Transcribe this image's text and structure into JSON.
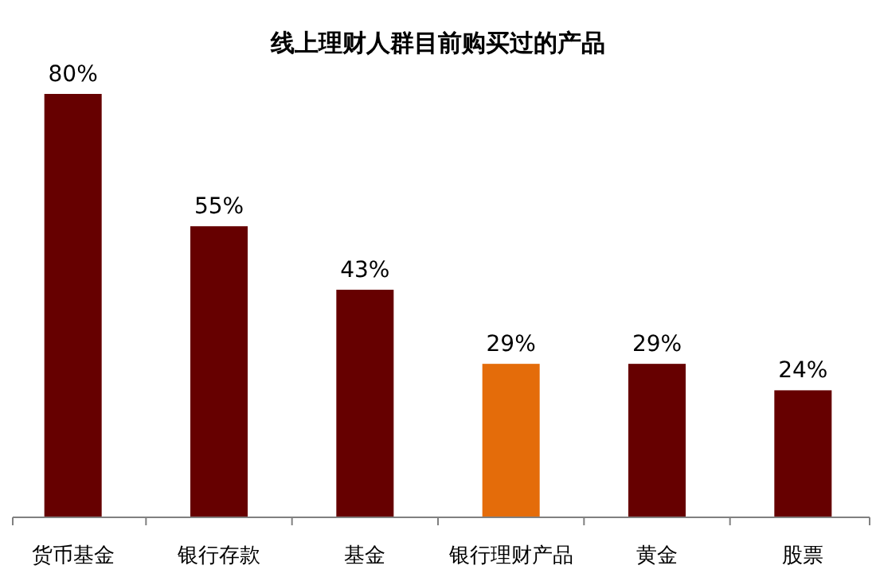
{
  "chart_data": {
    "type": "bar",
    "title": "线上理财人群目前购买过的产品",
    "categories": [
      "货币基金",
      "银行存款",
      "基金",
      "银行理财产品",
      "黄金",
      "股票"
    ],
    "values": [
      80,
      55,
      43,
      29,
      29,
      24
    ],
    "colors": [
      "#660000",
      "#660000",
      "#660000",
      "#e46c0a",
      "#660000",
      "#660000"
    ],
    "value_labels": [
      "80%",
      "55%",
      "43%",
      "29%",
      "29%",
      "24%"
    ],
    "grid": false
  }
}
